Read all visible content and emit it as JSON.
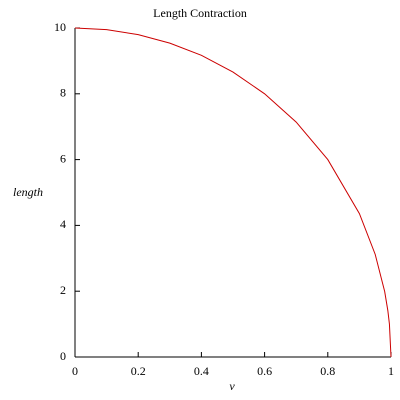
{
  "chart_data": {
    "type": "line",
    "title": "Length Contraction",
    "x_label": "v",
    "y_label": "length",
    "x": [
      0,
      0.1,
      0.2,
      0.3,
      0.4,
      0.5,
      0.6,
      0.7,
      0.8,
      0.9,
      0.95,
      0.98,
      0.99,
      0.995,
      1
    ],
    "series": [
      {
        "name": "length",
        "color": "#cc0000",
        "values": [
          10,
          9.95,
          9.8,
          9.54,
          9.17,
          8.66,
          8.0,
          7.14,
          6.0,
          4.36,
          3.12,
          1.99,
          1.41,
          1.0,
          0
        ]
      }
    ],
    "xlim": [
      0,
      1
    ],
    "ylim": [
      0,
      10
    ],
    "xticks": [
      0,
      0.2,
      0.4,
      0.6,
      0.8,
      1
    ],
    "yticks": [
      0,
      2,
      4,
      6,
      8,
      10
    ]
  }
}
